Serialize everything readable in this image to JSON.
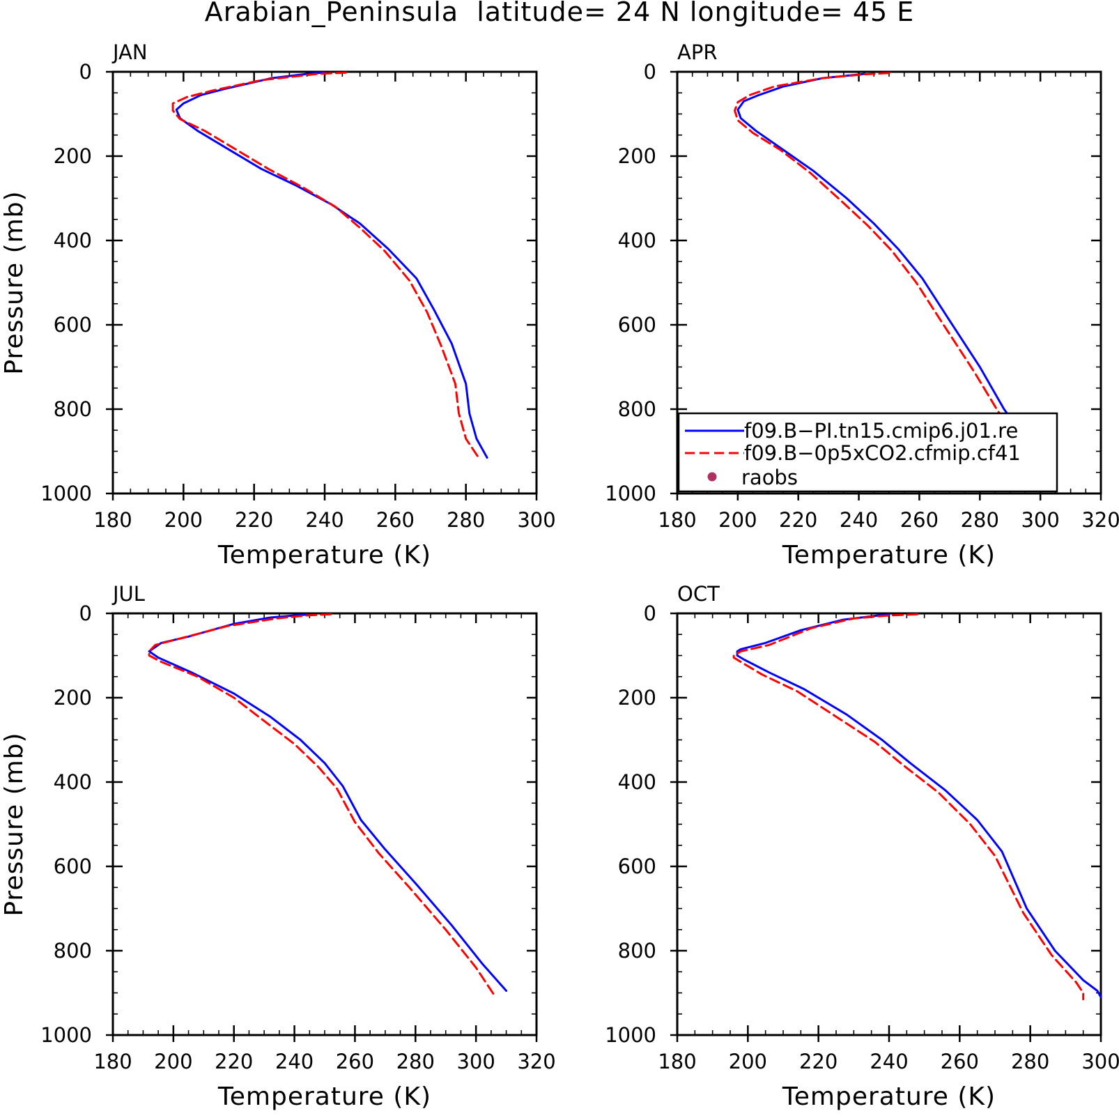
{
  "figure": {
    "title": "Arabian_Peninsula  latitude= 24 N longitude= 45 E"
  },
  "colors": {
    "model_a": "#0000ff",
    "model_b": "#ff0000",
    "raobs": "#b03060",
    "axes": "#000000"
  },
  "legend": {
    "placement": "lower-right of APR panel",
    "entries": [
      {
        "label": "f09.B−PI.tn15.cmip6.j01.re",
        "style": "solid",
        "color": "#0000ff"
      },
      {
        "label": "f09.B−0p5xCO2.cfmip.cf41",
        "style": "dashed",
        "color": "#ff0000"
      },
      {
        "label": "raobs",
        "style": "marker",
        "color": "#b03060"
      }
    ]
  },
  "chart_data": [
    {
      "type": "line",
      "panel": "JAN",
      "xlabel": "Temperature (K)",
      "ylabel": "Pressure (mb)",
      "xlim": [
        180,
        300
      ],
      "ylim": [
        1000,
        0
      ],
      "xticks": [
        "180",
        "200",
        "220",
        "240",
        "260",
        "280",
        "300"
      ],
      "yticks": [
        "0",
        "200",
        "400",
        "600",
        "800",
        "1000"
      ],
      "series": [
        {
          "name": "f09.B−PI.tn15.cmip6.j01.re",
          "x": [
            240,
            236,
            225,
            212,
            205,
            200,
            198,
            199,
            204,
            212,
            222,
            232,
            242,
            250,
            258,
            266,
            271,
            276,
            280,
            281,
            283,
            286
          ],
          "y": [
            2,
            4,
            15,
            40,
            55,
            75,
            90,
            110,
            140,
            180,
            230,
            270,
            315,
            360,
            420,
            490,
            565,
            645,
            740,
            810,
            870,
            915
          ]
        },
        {
          "name": "f09.B−0p5xCO2.cfmip.cf41",
          "x": [
            246,
            238,
            222,
            208,
            201,
            197,
            197,
            199,
            206,
            214,
            224,
            234,
            243,
            250,
            257,
            264,
            269,
            273,
            277,
            278,
            280,
            284
          ],
          "y": [
            2,
            5,
            20,
            45,
            60,
            75,
            92,
            112,
            140,
            180,
            230,
            275,
            320,
            370,
            425,
            495,
            570,
            650,
            740,
            810,
            870,
            920
          ]
        }
      ]
    },
    {
      "type": "line",
      "panel": "APR",
      "xlabel": "Temperature (K)",
      "ylabel": "",
      "xlim": [
        180,
        320
      ],
      "ylim": [
        1000,
        0
      ],
      "xticks": [
        "180",
        "200",
        "220",
        "240",
        "260",
        "280",
        "300",
        "320"
      ],
      "yticks": [
        "0",
        "200",
        "400",
        "600",
        "800",
        "1000"
      ],
      "series": [
        {
          "name": "f09.B−PI.tn15.cmip6.j01.re",
          "x": [
            242,
            238,
            228,
            215,
            207,
            202,
            200,
            201,
            206,
            214,
            225,
            236,
            245,
            253,
            261,
            270,
            280,
            288,
            296,
            301
          ],
          "y": [
            5,
            8,
            15,
            35,
            55,
            70,
            90,
            110,
            140,
            180,
            235,
            300,
            360,
            420,
            490,
            590,
            700,
            800,
            880,
            905
          ]
        },
        {
          "name": "f09.B−0p5xCO2.cfmip.cf41",
          "x": [
            250,
            242,
            228,
            212,
            204,
            200,
            199,
            200,
            205,
            214,
            224,
            234,
            243,
            251,
            259,
            268,
            278,
            286,
            294,
            299
          ],
          "y": [
            3,
            6,
            15,
            35,
            55,
            72,
            92,
            115,
            145,
            185,
            240,
            305,
            365,
            425,
            500,
            600,
            710,
            805,
            880,
            910
          ]
        }
      ]
    },
    {
      "type": "line",
      "panel": "JUL",
      "xlabel": "Temperature (K)",
      "ylabel": "Pressure (mb)",
      "xlim": [
        180,
        320
      ],
      "ylim": [
        1000,
        0
      ],
      "xticks": [
        "180",
        "200",
        "220",
        "240",
        "260",
        "280",
        "300",
        "320"
      ],
      "yticks": [
        "0",
        "200",
        "400",
        "600",
        "800",
        "1000"
      ],
      "series": [
        {
          "name": "f09.B−PI.tn15.cmip6.j01.re",
          "x": [
            244,
            240,
            232,
            220,
            205,
            196,
            193,
            192,
            195,
            206,
            220,
            232,
            242,
            250,
            256,
            262,
            270,
            280,
            292,
            302,
            310
          ],
          "y": [
            3,
            5,
            10,
            25,
            55,
            70,
            85,
            90,
            105,
            140,
            190,
            245,
            300,
            355,
            410,
            490,
            560,
            640,
            740,
            830,
            895
          ]
        },
        {
          "name": "f09.B−0p5xCO2.cfmip.cf41",
          "x": [
            252,
            244,
            234,
            218,
            202,
            194,
            192,
            192,
            196,
            208,
            220,
            230,
            240,
            248,
            254,
            260,
            268,
            278,
            290,
            300,
            306
          ],
          "y": [
            2,
            5,
            12,
            30,
            60,
            75,
            90,
            100,
            115,
            150,
            200,
            255,
            310,
            365,
            415,
            495,
            570,
            650,
            750,
            840,
            905
          ]
        }
      ]
    },
    {
      "type": "line",
      "panel": "OCT",
      "xlabel": "Temperature (K)",
      "ylabel": "",
      "xlim": [
        180,
        300
      ],
      "ylim": [
        1000,
        0
      ],
      "xticks": [
        "180",
        "200",
        "220",
        "240",
        "260",
        "280",
        "300"
      ],
      "yticks": [
        "0",
        "200",
        "400",
        "600",
        "800",
        "1000"
      ],
      "series": [
        {
          "name": "f09.B−PI.tn15.cmip6.j01.re",
          "x": [
            240,
            237,
            227,
            215,
            205,
            198,
            197,
            197,
            199,
            206,
            216,
            228,
            238,
            246,
            256,
            265,
            272,
            279,
            287,
            295,
            299,
            300
          ],
          "y": [
            3,
            5,
            15,
            40,
            70,
            85,
            90,
            100,
            110,
            140,
            180,
            240,
            300,
            355,
            420,
            490,
            565,
            700,
            800,
            870,
            895,
            910
          ]
        },
        {
          "name": "f09.B−0p5xCO2.cfmip.cf41",
          "x": [
            248,
            240,
            230,
            218,
            206,
            198,
            196,
            196,
            198,
            204,
            214,
            225,
            236,
            244,
            254,
            263,
            270,
            278,
            286,
            293,
            295,
            295
          ],
          "y": [
            2,
            5,
            12,
            35,
            75,
            90,
            100,
            105,
            115,
            145,
            185,
            245,
            305,
            360,
            425,
            500,
            575,
            710,
            810,
            875,
            900,
            915
          ]
        }
      ]
    }
  ]
}
